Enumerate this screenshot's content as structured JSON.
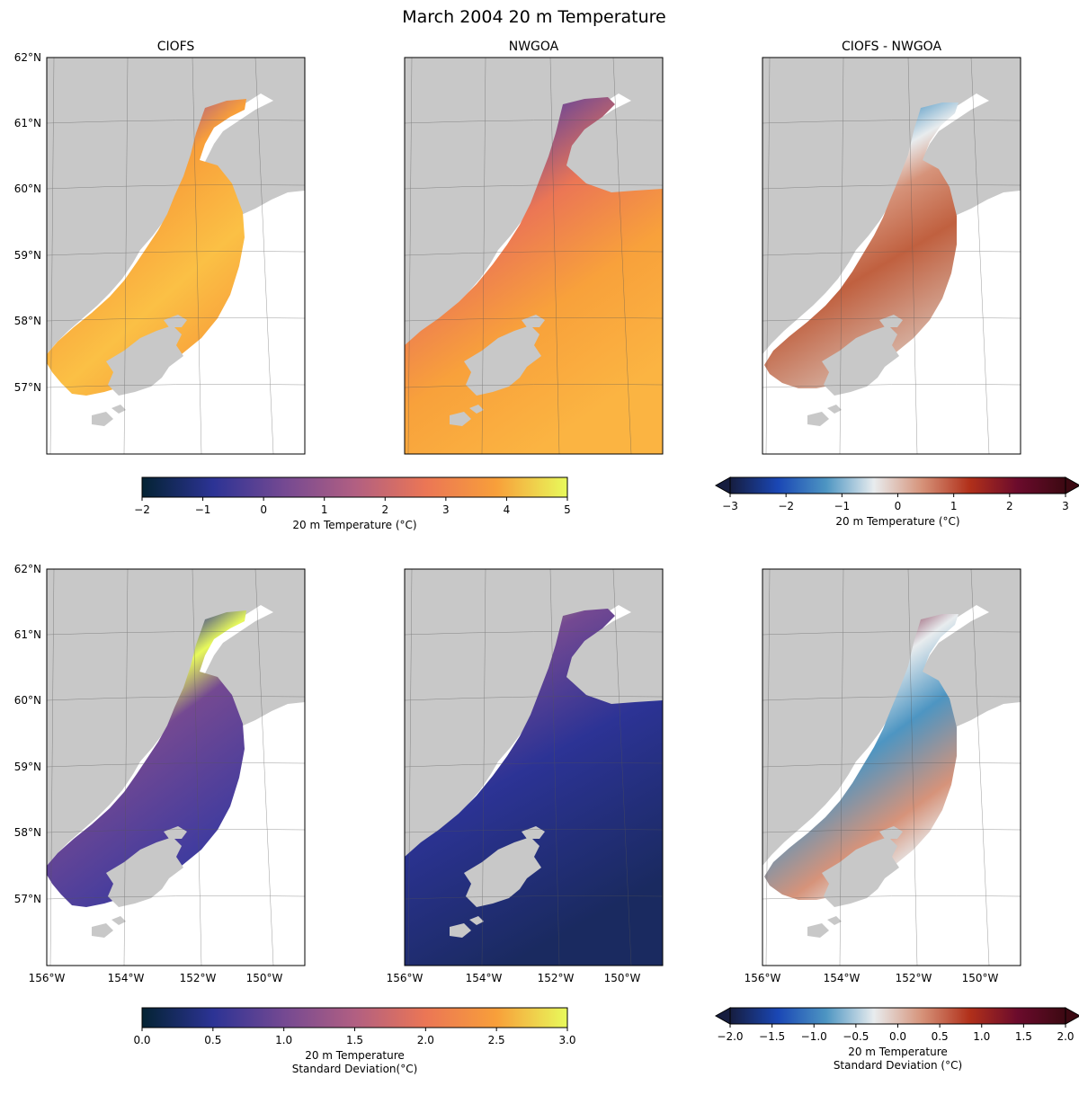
{
  "figure": {
    "title": "March 2004 20 m Temperature"
  },
  "panels": [
    {
      "title": "CIOFS"
    },
    {
      "title": "NWGOA"
    },
    {
      "title": "CIOFS - NWGOA"
    },
    {
      "title": ""
    },
    {
      "title": ""
    },
    {
      "title": ""
    }
  ],
  "lat_labels": [
    "62°N",
    "61°N",
    "60°N",
    "59°N",
    "58°N",
    "57°N"
  ],
  "lon_labels": [
    "156°W",
    "154°W",
    "152°W",
    "150°W"
  ],
  "colorbars": [
    {
      "ticks": [
        "−2",
        "−1",
        "0",
        "1",
        "2",
        "3",
        "4",
        "5"
      ],
      "label_line1": "20 m Temperature (°C)",
      "label_line2": "",
      "colormap": [
        "#042333",
        "#2c3395",
        "#744992",
        "#b15f82",
        "#eb7655",
        "#f89f3a",
        "#e8fa5b"
      ],
      "extend": "neither"
    },
    {
      "ticks": [
        "−3",
        "−2",
        "−1",
        "0",
        "1",
        "2",
        "3"
      ],
      "label_line1": "20 m Temperature (°C)",
      "label_line2": "",
      "colormap": [
        "#161d3f",
        "#1a47b5",
        "#4d95c2",
        "#e8ecee",
        "#d6937a",
        "#b1301a",
        "#6b0b2c",
        "#3c0912"
      ],
      "extend": "both"
    },
    {
      "ticks": [
        "0.0",
        "0.5",
        "1.0",
        "1.5",
        "2.0",
        "2.5",
        "3.0"
      ],
      "label_line1": "20 m Temperature",
      "label_line2": "Standard Deviation(°C)",
      "colormap": [
        "#042333",
        "#2c3395",
        "#744992",
        "#b15f82",
        "#eb7655",
        "#f89f3a",
        "#e8fa5b"
      ],
      "extend": "neither"
    },
    {
      "ticks": [
        "−2.0",
        "−1.5",
        "−1.0",
        "−0.5",
        "0.0",
        "0.5",
        "1.0",
        "1.5",
        "2.0"
      ],
      "label_line1": "20 m Temperature",
      "label_line2": "Standard Deviation (°C)",
      "colormap": [
        "#161d3f",
        "#1a47b5",
        "#4d95c2",
        "#e8ecee",
        "#d6937a",
        "#b1301a",
        "#6b0b2c",
        "#3c0912"
      ],
      "extend": "both"
    }
  ],
  "colors": {
    "land": "#c8c8c8",
    "no_data": "#ffffff",
    "grid": "#555555"
  }
}
